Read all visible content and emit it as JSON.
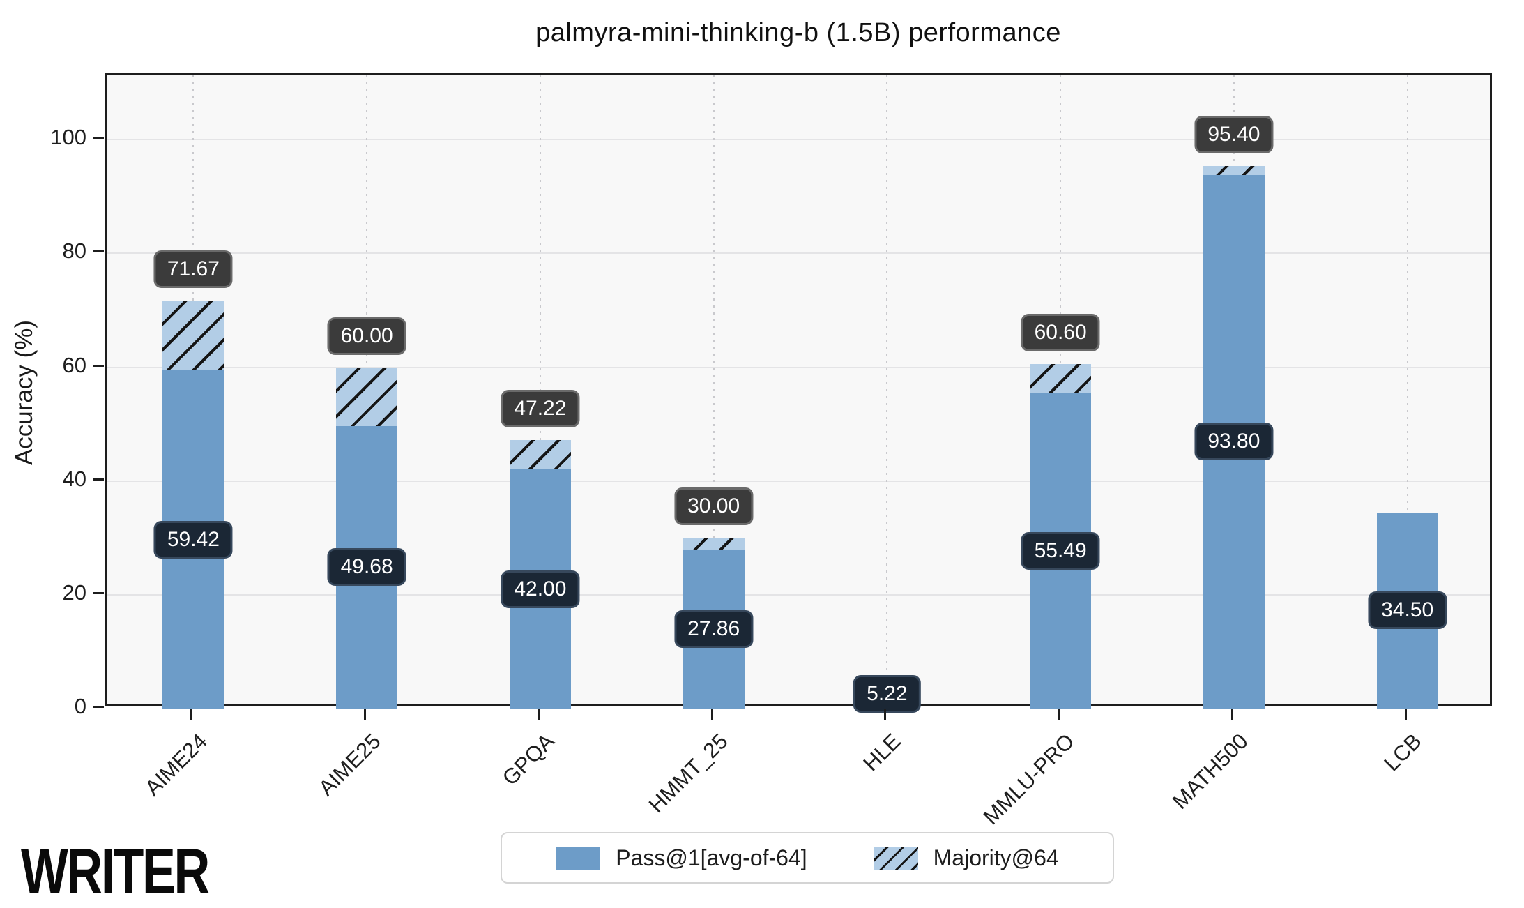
{
  "title": "palmyra-mini-thinking-b (1.5B) performance",
  "watermark": "WRITER",
  "colors": {
    "bar_solid": "#6d9cc8",
    "bar_hatch_bg": "#b2cde6",
    "bar_hatch_line": "#151515",
    "pass_label_bg": "#1b2735",
    "pass_label_border": "#37485c",
    "majority_label_bg": "#3b3b3b",
    "majority_label_border": "#6a6a6a",
    "label_text": "#ffffff",
    "plot_bg": "#f8f8f8",
    "spine": "#1d1d1d"
  },
  "chart_data": {
    "type": "bar",
    "title": "palmyra-mini-thinking-b (1.5B) performance",
    "xlabel": "",
    "ylabel": "Accuracy (%)",
    "categories": [
      "AIME24",
      "AIME25",
      "GPQA",
      "HMMT_25",
      "HLE",
      "MMLU-PRO",
      "MATH500",
      "LCB"
    ],
    "series": [
      {
        "name": "Pass@1[avg-of-64]",
        "style": "solid",
        "values": [
          59.42,
          49.68,
          42.0,
          27.86,
          5.22,
          55.49,
          93.8,
          34.5
        ]
      },
      {
        "name": "Majority@64",
        "style": "hatched",
        "values": [
          71.67,
          60.0,
          47.22,
          30.0,
          null,
          60.6,
          95.4,
          null
        ]
      }
    ],
    "yticks": [
      0,
      20,
      40,
      60,
      80,
      100
    ],
    "ylim": [
      0,
      111.3
    ],
    "grid": true,
    "legend_position": "bottom-center"
  }
}
